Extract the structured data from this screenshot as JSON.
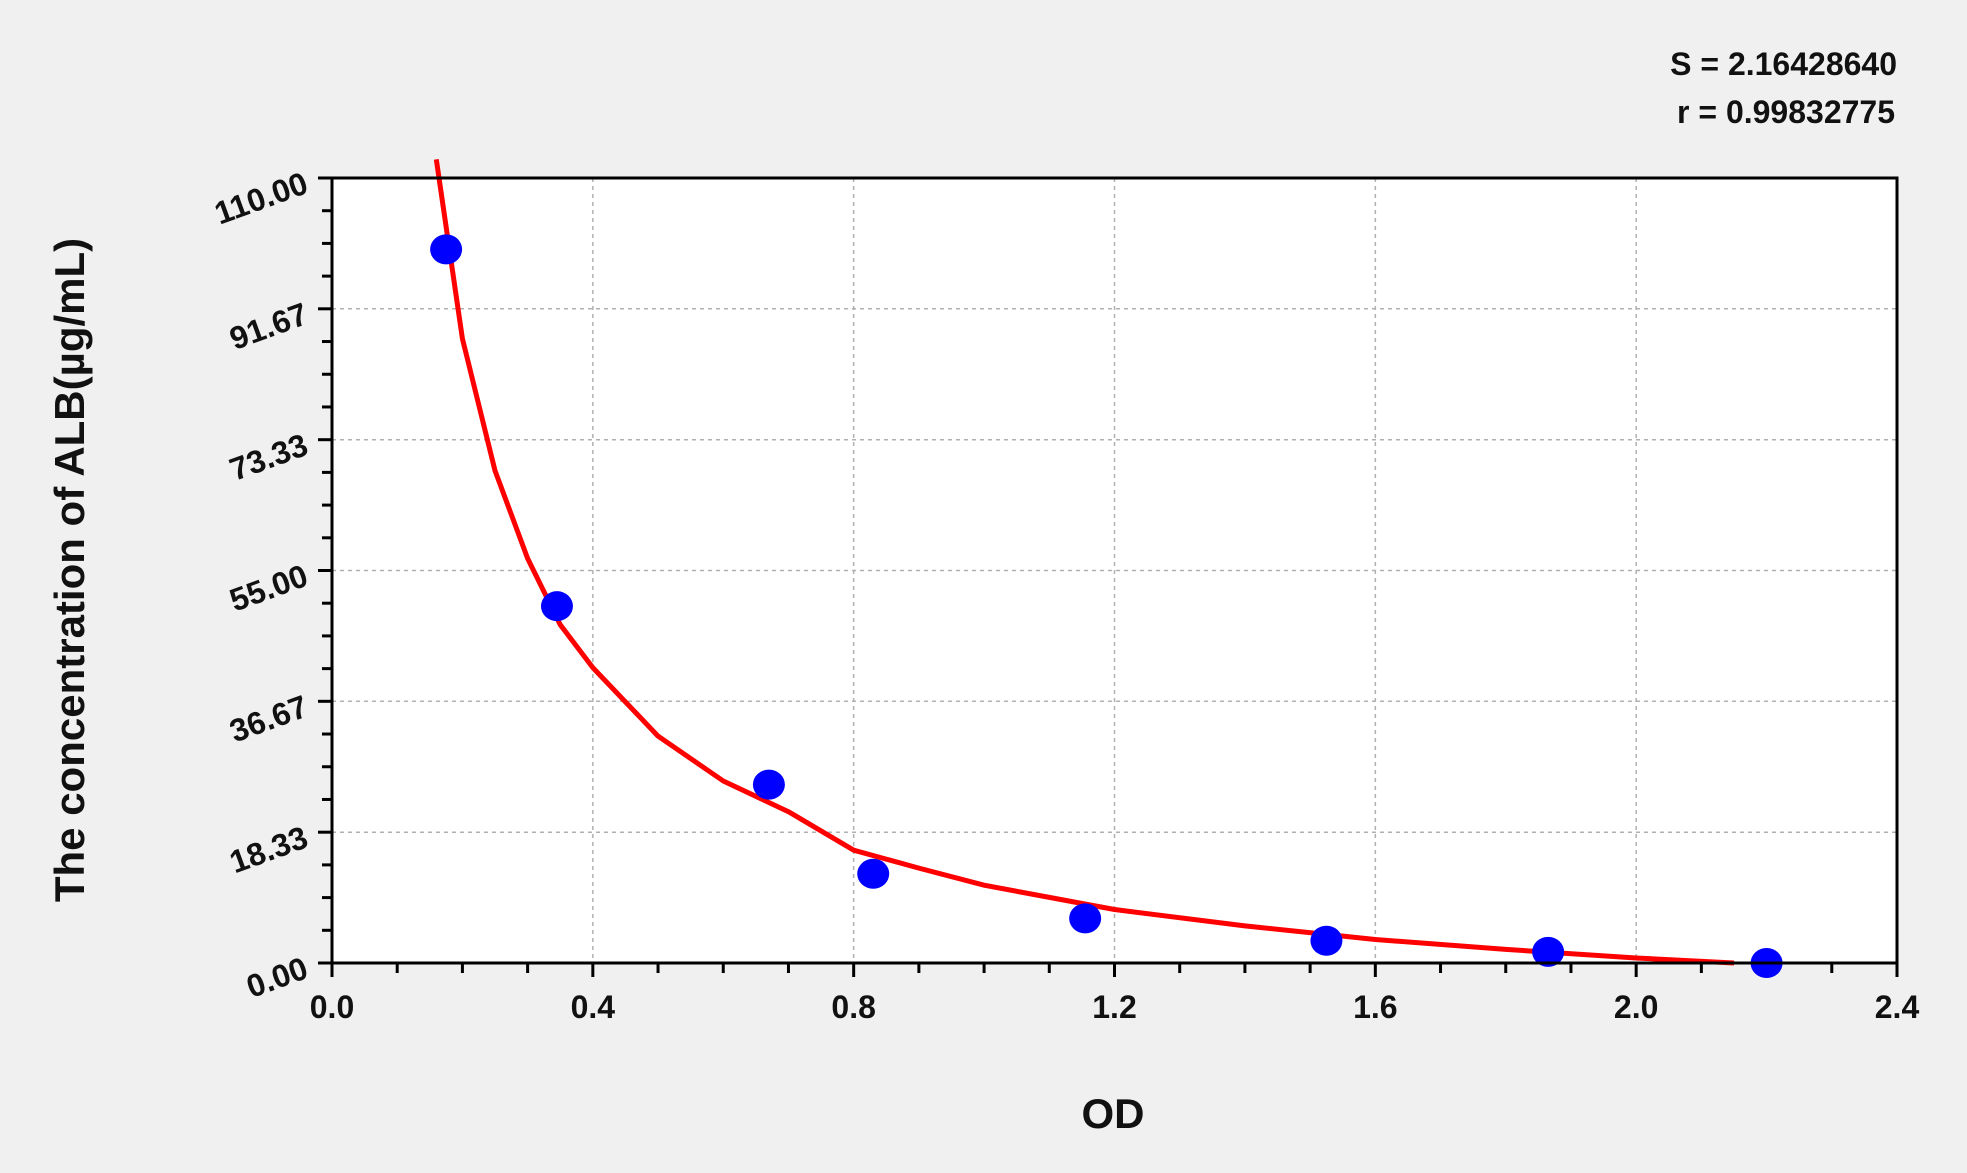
{
  "chart_data": {
    "type": "scatter",
    "title": "",
    "xlabel": "OD",
    "ylabel": "The concentration of  ALB(µg/mL)",
    "xlim": [
      0,
      2.4
    ],
    "ylim": [
      0,
      110
    ],
    "x_ticks": [
      "0.0",
      "0.4",
      "0.8",
      "1.2",
      "1.6",
      "2.0",
      "2.4"
    ],
    "y_ticks": [
      "0.00",
      "18.33",
      "36.67",
      "55.00",
      "73.33",
      "91.67",
      "110.00"
    ],
    "grid": true,
    "annotations": [
      "S = 2.16428640",
      "r = 0.99832775"
    ],
    "points": {
      "x": [
        0.175,
        0.345,
        0.67,
        0.83,
        1.155,
        1.525,
        1.865,
        2.2
      ],
      "y": [
        100,
        50,
        25,
        12.5,
        6.25,
        3.12,
        1.56,
        0
      ]
    },
    "fit_curve": {
      "x": [
        0.16,
        0.2,
        0.25,
        0.3,
        0.35,
        0.4,
        0.5,
        0.6,
        0.7,
        0.8,
        0.9,
        1.0,
        1.2,
        1.4,
        1.6,
        1.8,
        2.0,
        2.15
      ],
      "y": [
        112.6,
        87.5,
        69.0,
        56.7,
        47.4,
        41.4,
        31.8,
        25.5,
        21.2,
        15.8,
        13.3,
        10.9,
        7.5,
        5.2,
        3.3,
        1.9,
        0.7,
        0
      ]
    },
    "colors": {
      "points": "#0000ff",
      "curve": "#ff0000",
      "background": "#f0f0f0",
      "plot": "#ffffff"
    }
  }
}
